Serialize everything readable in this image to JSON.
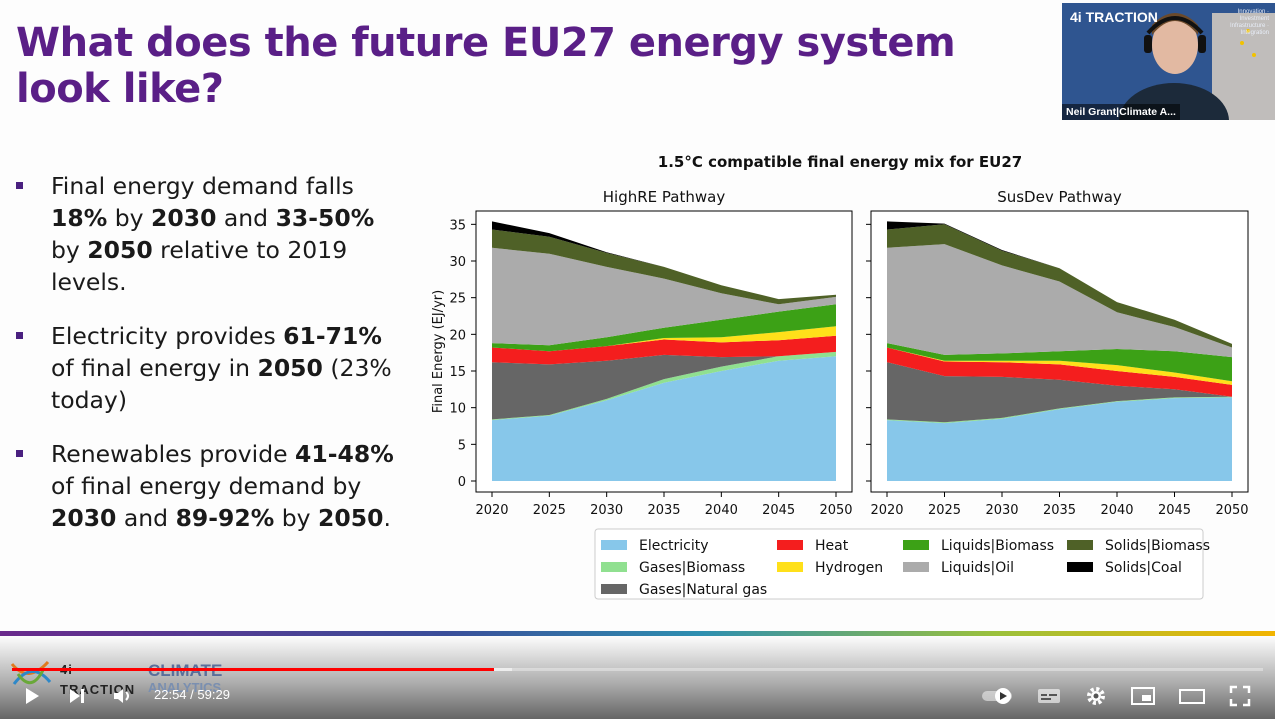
{
  "slide": {
    "title_line1": "What does the future EU27 energy system",
    "title_line2": "look like?",
    "bullets": [
      {
        "parts": [
          {
            "t": "Final energy demand falls ",
            "b": false
          },
          {
            "t": "18%",
            "b": true
          },
          {
            "t": " by ",
            "b": false
          },
          {
            "t": "2030",
            "b": true
          },
          {
            "t": " and ",
            "b": false
          },
          {
            "t": "33-50%",
            "b": true
          },
          {
            "t": " by ",
            "b": false
          },
          {
            "t": "2050",
            "b": true
          },
          {
            "t": " relative to 2019 levels.",
            "b": false
          }
        ]
      },
      {
        "parts": [
          {
            "t": "Electricity provides ",
            "b": false
          },
          {
            "t": "61-71%",
            "b": true
          },
          {
            "t": " of final energy in ",
            "b": false
          },
          {
            "t": "2050",
            "b": true
          },
          {
            "t": " (23% today)",
            "b": false
          }
        ]
      },
      {
        "parts": [
          {
            "t": "Renewables provide ",
            "b": false
          },
          {
            "t": "41-48%",
            "b": true
          },
          {
            "t": " of final energy demand by ",
            "b": false
          },
          {
            "t": "2030",
            "b": true
          },
          {
            "t": " and ",
            "b": false
          },
          {
            "t": "89-92%",
            "b": true
          },
          {
            "t": " by ",
            "b": false
          },
          {
            "t": "2050",
            "b": true
          },
          {
            "t": ".",
            "b": false
          }
        ]
      }
    ]
  },
  "webcam": {
    "logo_text": "4i TRACTION",
    "tagline": "Innovation · Investment Infrastructure · Integration",
    "speaker_name": "Neil Grant|Climate A..."
  },
  "footer": {
    "logo_left": "4i TRACTION",
    "logo_right_line1": "CLIMATE",
    "logo_right_line2": "ANALYTICS"
  },
  "player": {
    "current_time": "22:54",
    "separator": " / ",
    "duration": "59:29",
    "played_fraction": 0.385,
    "buffered_fraction": 0.4,
    "icons": [
      "play-icon",
      "next-icon",
      "volume-icon",
      "autoplay-toggle-icon",
      "subtitles-icon",
      "settings-icon",
      "miniplayer-icon",
      "theater-icon",
      "fullscreen-icon"
    ]
  },
  "chart_data": [
    {
      "type": "area",
      "suptitle": "1.5°C compatible final energy mix for EU27",
      "title": "HighRE Pathway",
      "ylabel": "Final Energy (EJ/yr)",
      "ylim": [
        0,
        36
      ],
      "yticks": [
        0,
        5,
        10,
        15,
        20,
        25,
        30,
        35
      ],
      "x": [
        2020,
        2025,
        2030,
        2035,
        2040,
        2045,
        2050
      ],
      "series": [
        {
          "name": "Electricity",
          "color": "#87c7ea",
          "values": [
            8.3,
            8.9,
            11.0,
            13.4,
            15.0,
            16.4,
            17.0
          ]
        },
        {
          "name": "Gases|Biomass",
          "color": "#90e090",
          "values": [
            0.1,
            0.1,
            0.2,
            0.5,
            0.6,
            0.6,
            0.6
          ]
        },
        {
          "name": "Gases|Natural gas",
          "color": "#666666",
          "values": [
            7.8,
            6.9,
            5.2,
            3.3,
            1.3,
            0.0,
            0.0
          ]
        },
        {
          "name": "Heat",
          "color": "#f41e1e",
          "values": [
            2.0,
            1.8,
            2.0,
            2.1,
            2.0,
            2.2,
            2.2
          ]
        },
        {
          "name": "Hydrogen",
          "color": "#ffe01a",
          "values": [
            0.0,
            0.0,
            0.0,
            0.2,
            0.7,
            1.1,
            1.3
          ]
        },
        {
          "name": "Liquids|Biomass",
          "color": "#3ca116",
          "values": [
            0.6,
            0.8,
            1.2,
            1.4,
            2.4,
            2.8,
            3.0
          ]
        },
        {
          "name": "Liquids|Oil",
          "color": "#ababab",
          "values": [
            13.0,
            12.5,
            9.6,
            6.7,
            3.6,
            1.0,
            1.0
          ]
        },
        {
          "name": "Solids|Biomass",
          "color": "#4f6127",
          "values": [
            2.5,
            2.3,
            1.9,
            1.6,
            1.1,
            0.7,
            0.3
          ]
        },
        {
          "name": "Solids|Coal",
          "color": "#000000",
          "values": [
            1.1,
            0.5,
            0.1,
            0.0,
            0.0,
            0.0,
            0.0
          ]
        }
      ]
    },
    {
      "type": "area",
      "title": "SusDev Pathway",
      "ylim": [
        0,
        36
      ],
      "x": [
        2020,
        2025,
        2030,
        2035,
        2040,
        2045,
        2050
      ],
      "series": [
        {
          "name": "Electricity",
          "color": "#87c7ea",
          "values": [
            8.3,
            7.9,
            8.5,
            9.8,
            10.8,
            11.3,
            11.4
          ]
        },
        {
          "name": "Gases|Biomass",
          "color": "#90e090",
          "values": [
            0.1,
            0.1,
            0.1,
            0.1,
            0.1,
            0.1,
            0.1
          ]
        },
        {
          "name": "Gases|Natural gas",
          "color": "#666666",
          "values": [
            7.8,
            6.3,
            5.6,
            3.9,
            2.1,
            1.1,
            0.0
          ]
        },
        {
          "name": "Heat",
          "color": "#f41e1e",
          "values": [
            2.0,
            2.0,
            2.0,
            2.1,
            2.0,
            1.7,
            1.6
          ]
        },
        {
          "name": "Hydrogen",
          "color": "#ffe01a",
          "values": [
            0.0,
            0.1,
            0.2,
            0.5,
            0.8,
            0.6,
            0.5
          ]
        },
        {
          "name": "Liquids|Biomass",
          "color": "#3ca116",
          "values": [
            0.6,
            0.8,
            1.0,
            1.3,
            2.2,
            2.9,
            3.3
          ]
        },
        {
          "name": "Liquids|Oil",
          "color": "#ababab",
          "values": [
            13.0,
            15.1,
            12.0,
            9.5,
            5.0,
            3.3,
            1.3
          ]
        },
        {
          "name": "Solids|Biomass",
          "color": "#4f6127",
          "values": [
            2.5,
            2.7,
            2.0,
            1.8,
            1.4,
            1.0,
            0.5
          ]
        },
        {
          "name": "Solids|Coal",
          "color": "#000000",
          "values": [
            1.1,
            0.1,
            0.1,
            0.0,
            0.0,
            0.0,
            0.0
          ]
        }
      ]
    }
  ]
}
